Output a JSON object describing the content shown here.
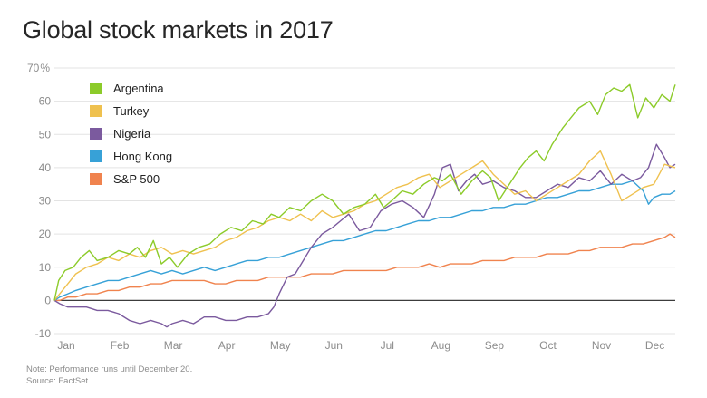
{
  "title": "Global stock markets in 2017",
  "notes": {
    "note": "Note: Performance runs until December 20.",
    "source": "Source: FactSet"
  },
  "chart_data": {
    "type": "line",
    "title": "Global stock markets in 2017",
    "xlabel": "",
    "ylabel": "",
    "x_ticks": [
      "Jan",
      "Feb",
      "Mar",
      "Apr",
      "May",
      "Jun",
      "Jul",
      "Aug",
      "Sep",
      "Oct",
      "Nov",
      "Dec"
    ],
    "y_ticks": [
      -10,
      0,
      10,
      20,
      30,
      40,
      50,
      60,
      70
    ],
    "y_tick_labels": [
      "-10",
      "0",
      "10",
      "20",
      "30",
      "40",
      "50",
      "60",
      "70"
    ],
    "y_unit_label": "%",
    "xlim": [
      1,
      12.6
    ],
    "ylim": [
      -10,
      70
    ],
    "grid": true,
    "legend_position": "top-left",
    "series": [
      {
        "name": "Argentina",
        "color": "#8ccb2a",
        "x": [
          1.0,
          1.08,
          1.2,
          1.35,
          1.5,
          1.65,
          1.8,
          2.0,
          2.2,
          2.4,
          2.55,
          2.7,
          2.85,
          3.0,
          3.15,
          3.3,
          3.5,
          3.7,
          3.9,
          4.1,
          4.3,
          4.5,
          4.7,
          4.9,
          5.05,
          5.2,
          5.4,
          5.6,
          5.8,
          6.0,
          6.2,
          6.4,
          6.6,
          6.8,
          7.0,
          7.15,
          7.3,
          7.5,
          7.7,
          7.9,
          8.1,
          8.25,
          8.4,
          8.6,
          8.8,
          9.0,
          9.15,
          9.3,
          9.5,
          9.7,
          9.85,
          10.0,
          10.15,
          10.3,
          10.5,
          10.65,
          10.8,
          11.0,
          11.15,
          11.3,
          11.45,
          11.6,
          11.75,
          11.9,
          12.05,
          12.2,
          12.35,
          12.5,
          12.6
        ],
        "y": [
          0,
          6,
          9,
          10,
          13,
          15,
          12,
          13,
          15,
          14,
          16,
          13,
          18,
          11,
          13,
          10,
          14,
          16,
          17,
          20,
          22,
          21,
          24,
          23,
          26,
          25,
          28,
          27,
          30,
          32,
          30,
          26,
          28,
          29,
          32,
          28,
          30,
          33,
          32,
          35,
          37,
          36,
          38,
          32,
          36,
          39,
          37,
          30,
          35,
          40,
          43,
          45,
          42,
          47,
          52,
          55,
          58,
          60,
          56,
          62,
          64,
          63,
          65,
          55,
          61,
          58,
          62,
          60,
          65
        ]
      },
      {
        "name": "Turkey",
        "color": "#efc14f",
        "x": [
          1.0,
          1.1,
          1.25,
          1.4,
          1.6,
          1.8,
          2.0,
          2.2,
          2.4,
          2.6,
          2.8,
          3.0,
          3.2,
          3.4,
          3.6,
          3.8,
          4.0,
          4.2,
          4.4,
          4.6,
          4.8,
          5.0,
          5.2,
          5.4,
          5.6,
          5.8,
          6.0,
          6.2,
          6.4,
          6.6,
          6.8,
          7.0,
          7.2,
          7.4,
          7.6,
          7.8,
          8.0,
          8.2,
          8.4,
          8.6,
          8.8,
          9.0,
          9.2,
          9.4,
          9.6,
          9.8,
          10.0,
          10.2,
          10.4,
          10.6,
          10.8,
          11.0,
          11.2,
          11.4,
          11.6,
          11.8,
          12.0,
          12.2,
          12.4,
          12.6
        ],
        "y": [
          0,
          2,
          5,
          8,
          10,
          11,
          13,
          12,
          14,
          13,
          15,
          16,
          14,
          15,
          14,
          15,
          16,
          18,
          19,
          21,
          22,
          24,
          25,
          24,
          26,
          24,
          27,
          25,
          26,
          27,
          29,
          30,
          32,
          34,
          35,
          37,
          38,
          34,
          36,
          38,
          40,
          42,
          38,
          35,
          32,
          33,
          30,
          32,
          34,
          36,
          38,
          42,
          45,
          38,
          30,
          32,
          34,
          35,
          41,
          40
        ]
      },
      {
        "name": "Nigeria",
        "color": "#7b5a9e",
        "x": [
          1.0,
          1.1,
          1.25,
          1.4,
          1.6,
          1.8,
          2.0,
          2.2,
          2.4,
          2.6,
          2.8,
          3.0,
          3.1,
          3.2,
          3.4,
          3.6,
          3.8,
          4.0,
          4.2,
          4.4,
          4.6,
          4.8,
          5.0,
          5.1,
          5.2,
          5.35,
          5.5,
          5.65,
          5.8,
          6.0,
          6.2,
          6.35,
          6.5,
          6.7,
          6.9,
          7.1,
          7.3,
          7.5,
          7.7,
          7.9,
          8.1,
          8.25,
          8.4,
          8.55,
          8.7,
          8.85,
          9.0,
          9.2,
          9.4,
          9.6,
          9.8,
          10.0,
          10.2,
          10.4,
          10.6,
          10.8,
          11.0,
          11.2,
          11.4,
          11.6,
          11.8,
          11.95,
          12.1,
          12.25,
          12.4,
          12.5,
          12.6
        ],
        "y": [
          0,
          -1,
          -2,
          -2,
          -2,
          -3,
          -3,
          -4,
          -6,
          -7,
          -6,
          -7,
          -8,
          -7,
          -6,
          -7,
          -5,
          -5,
          -6,
          -6,
          -5,
          -5,
          -4,
          -2,
          2,
          7,
          8,
          12,
          16,
          20,
          22,
          24,
          26,
          21,
          22,
          27,
          29,
          30,
          28,
          25,
          32,
          40,
          41,
          33,
          36,
          38,
          35,
          36,
          34,
          33,
          31,
          31,
          33,
          35,
          34,
          37,
          36,
          39,
          35,
          38,
          36,
          37,
          40,
          47,
          43,
          40,
          41
        ]
      },
      {
        "name": "Hong Kong",
        "color": "#37a1d7",
        "x": [
          1.0,
          1.1,
          1.25,
          1.4,
          1.6,
          1.8,
          2.0,
          2.2,
          2.4,
          2.6,
          2.8,
          3.0,
          3.2,
          3.4,
          3.6,
          3.8,
          4.0,
          4.2,
          4.4,
          4.6,
          4.8,
          5.0,
          5.2,
          5.4,
          5.6,
          5.8,
          6.0,
          6.2,
          6.4,
          6.6,
          6.8,
          7.0,
          7.2,
          7.4,
          7.6,
          7.8,
          8.0,
          8.2,
          8.4,
          8.6,
          8.8,
          9.0,
          9.2,
          9.4,
          9.6,
          9.8,
          10.0,
          10.2,
          10.4,
          10.6,
          10.8,
          11.0,
          11.2,
          11.4,
          11.6,
          11.8,
          12.0,
          12.1,
          12.2,
          12.35,
          12.5,
          12.6
        ],
        "y": [
          0,
          1,
          2,
          3,
          4,
          5,
          6,
          6,
          7,
          8,
          9,
          8,
          9,
          8,
          9,
          10,
          9,
          10,
          11,
          12,
          12,
          13,
          13,
          14,
          15,
          16,
          17,
          18,
          18,
          19,
          20,
          21,
          21,
          22,
          23,
          24,
          24,
          25,
          25,
          26,
          27,
          27,
          28,
          28,
          29,
          29,
          30,
          31,
          31,
          32,
          33,
          33,
          34,
          35,
          35,
          36,
          33,
          29,
          31,
          32,
          32,
          33
        ]
      },
      {
        "name": "S&P 500",
        "color": "#f0834e",
        "x": [
          1.0,
          1.1,
          1.25,
          1.4,
          1.6,
          1.8,
          2.0,
          2.2,
          2.4,
          2.6,
          2.8,
          3.0,
          3.2,
          3.4,
          3.6,
          3.8,
          4.0,
          4.2,
          4.4,
          4.6,
          4.8,
          5.0,
          5.2,
          5.4,
          5.6,
          5.8,
          6.0,
          6.2,
          6.4,
          6.6,
          6.8,
          7.0,
          7.2,
          7.4,
          7.6,
          7.8,
          8.0,
          8.2,
          8.4,
          8.6,
          8.8,
          9.0,
          9.2,
          9.4,
          9.6,
          9.8,
          10.0,
          10.2,
          10.4,
          10.6,
          10.8,
          11.0,
          11.2,
          11.4,
          11.6,
          11.8,
          12.0,
          12.2,
          12.4,
          12.5,
          12.6
        ],
        "y": [
          0,
          0,
          1,
          1,
          2,
          2,
          3,
          3,
          4,
          4,
          5,
          5,
          6,
          6,
          6,
          6,
          5,
          5,
          6,
          6,
          6,
          7,
          7,
          7,
          7,
          8,
          8,
          8,
          9,
          9,
          9,
          9,
          9,
          10,
          10,
          10,
          11,
          10,
          11,
          11,
          11,
          12,
          12,
          12,
          13,
          13,
          13,
          14,
          14,
          14,
          15,
          15,
          16,
          16,
          16,
          17,
          17,
          18,
          19,
          20,
          19
        ]
      }
    ]
  }
}
